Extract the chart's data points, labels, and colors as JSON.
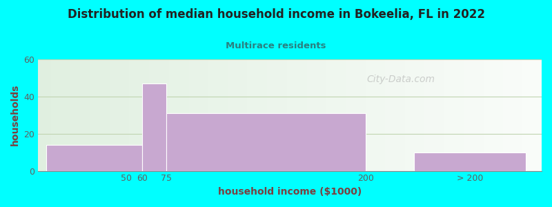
{
  "title": "Distribution of median household income in Bokeelia, FL in 2022",
  "subtitle": "Multirace residents",
  "xlabel": "household income ($1000)",
  "ylabel": "households",
  "background_color": "#00FFFF",
  "bar_color": "#c8a8d0",
  "bar_edge_color": "#ffffff",
  "title_color": "#222222",
  "subtitle_color": "#2a8080",
  "axis_label_color": "#7a4040",
  "tick_label_color": "#606060",
  "watermark": "City-Data.com",
  "ylim": [
    0,
    60
  ],
  "yticks": [
    0,
    20,
    40,
    60
  ],
  "bars": [
    {
      "x_left": 0.0,
      "x_right": 60,
      "height": 14
    },
    {
      "x_left": 60,
      "x_right": 75,
      "height": 47
    },
    {
      "x_left": 75,
      "x_right": 200,
      "height": 31
    },
    {
      "x_left": 230,
      "x_right": 300,
      "height": 10
    }
  ],
  "xtick_values": [
    50,
    60,
    75,
    200
  ],
  "xtick_labels": [
    "50",
    "60",
    "75",
    "200"
  ],
  "extra_tick_value": 265,
  "extra_tick_label": "> 200",
  "xlim": [
    -5,
    310
  ]
}
